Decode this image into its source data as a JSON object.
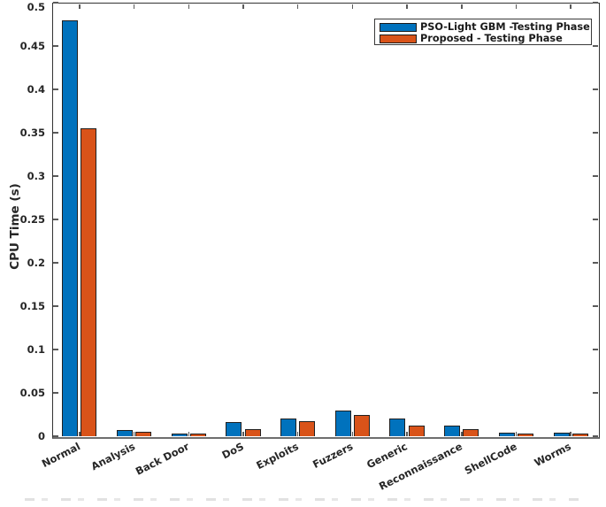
{
  "figure": {
    "background": "#ffffff",
    "axis_color": "#333333",
    "tick_color": "#5a5a5a"
  },
  "chart_data": {
    "type": "bar",
    "title": "",
    "xlabel": "",
    "ylabel": "CPU Time (s)",
    "ylim": [
      0,
      0.5
    ],
    "grid": false,
    "legend_position": "top-right",
    "bar_edge_color": "#202020",
    "ytick_values": [
      0,
      0.05,
      0.1,
      0.15,
      0.2,
      0.25,
      0.3,
      0.35,
      0.4,
      0.45,
      0.5
    ],
    "ytick_labels": [
      "0",
      "0.05",
      "0.1",
      "0.15",
      "0.2",
      "0.25",
      "0.3",
      "0.35",
      "0.4",
      "0.45",
      "0.5"
    ],
    "categories": [
      "Normal",
      "Analysis",
      "Back Door",
      "DoS",
      "Exploits",
      "Fuzzers",
      "Generic",
      "Reconnaissance",
      "ShellCode",
      "Worms"
    ],
    "series": [
      {
        "name": "PSO-Light GBM -Testing Phase",
        "color": "#0072BD",
        "values": [
          0.48,
          0.007,
          0.003,
          0.016,
          0.02,
          0.03,
          0.02,
          0.012,
          0.004,
          0.004
        ]
      },
      {
        "name": "Proposed - Testing Phase",
        "color": "#D95319",
        "values": [
          0.355,
          0.005,
          0.0035,
          0.008,
          0.017,
          0.024,
          0.012,
          0.008,
          0.0035,
          0.003
        ]
      }
    ]
  }
}
